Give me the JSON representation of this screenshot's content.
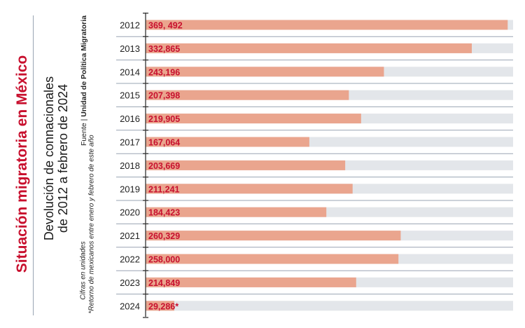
{
  "title": "Situación migratoria en México",
  "subtitle_lines": [
    "Devolución de connacionales",
    "de 2012 a febrero de 2024"
  ],
  "source_label": "Fuente",
  "source_name": "Unidad de Política Migratoria",
  "note": "*Retorno de mexicanos entre enero y febrero de este año",
  "units": "Cifras en unidades",
  "colors": {
    "title": "#c8102e",
    "bar": "#eaa58e",
    "track": "#e3e6ea",
    "value_text": "#c8102e",
    "axis": "#333333",
    "separator": "#9aa4b3"
  },
  "chart_data": {
    "type": "bar",
    "orientation": "horizontal",
    "title": "Devolución de connacionales de 2012 a febrero de 2024",
    "xlabel": "",
    "ylabel": "",
    "xlim": [
      0,
      375000
    ],
    "categories": [
      "2012",
      "2013",
      "2014",
      "2015",
      "2016",
      "2017",
      "2018",
      "2019",
      "2020",
      "2021",
      "2022",
      "2023",
      "2024"
    ],
    "values": [
      369492,
      332865,
      243196,
      207398,
      219905,
      167064,
      203669,
      211241,
      184423,
      260329,
      258000,
      214849,
      29286
    ],
    "value_labels": [
      "369, 492",
      "332,865",
      "243,196",
      "207,398",
      "219,905",
      "167,064",
      "203,669",
      "211,241",
      "184,423",
      "260,329",
      "258,000",
      "214,849",
      "29,286*"
    ]
  }
}
